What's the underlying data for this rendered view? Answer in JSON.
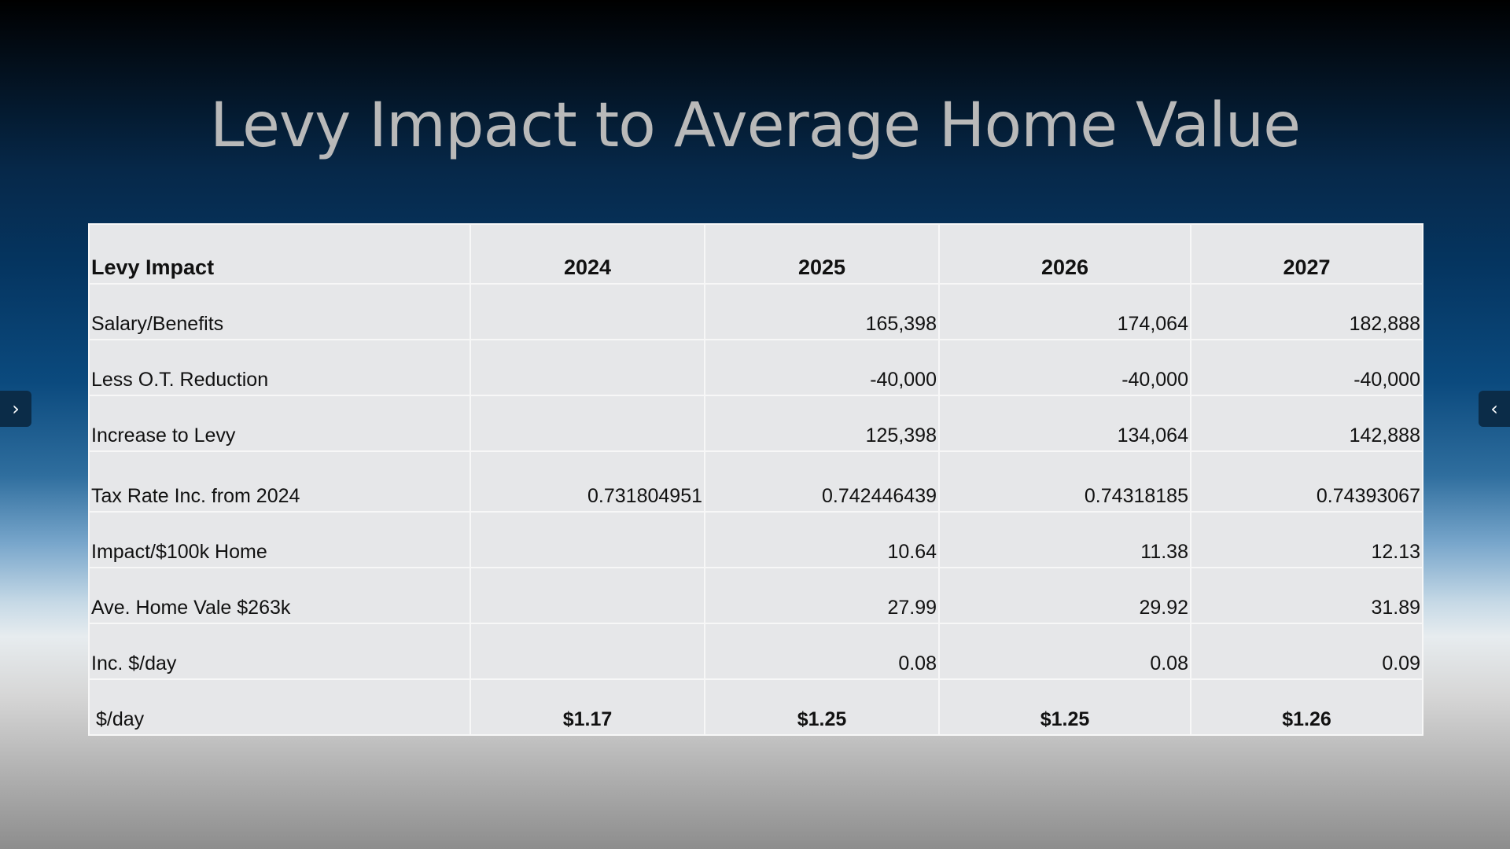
{
  "slide": {
    "title": "Levy Impact to Average Home Value"
  },
  "table": {
    "headers": [
      "Levy Impact",
      "2024",
      "2025",
      "2026",
      "2027"
    ],
    "rows": [
      {
        "label": "Salary/Benefits",
        "values": [
          "",
          "165,398",
          "174,064",
          "182,888"
        ]
      },
      {
        "label": "Less O.T. Reduction",
        "values": [
          "",
          "-40,000",
          "-40,000",
          "-40,000"
        ]
      },
      {
        "label": "Increase to Levy",
        "values": [
          "",
          "125,398",
          "134,064",
          "142,888"
        ]
      },
      {
        "label": "Tax Rate Inc. from 2024",
        "values": [
          "0.731804951",
          "0.742446439",
          "0.74318185",
          "0.74393067"
        ]
      },
      {
        "label": "Impact/$100k Home",
        "values": [
          "",
          "10.64",
          "11.38",
          "12.13"
        ]
      },
      {
        "label": "Ave. Home Vale $263k",
        "values": [
          "",
          "27.99",
          "29.92",
          "31.89"
        ]
      },
      {
        "label": "Inc. $/day",
        "values": [
          "",
          "0.08",
          "0.08",
          "0.09"
        ]
      }
    ],
    "total": {
      "label": "$/day",
      "values": [
        "$1.17",
        "$1.25",
        "$1.25",
        "$1.26"
      ]
    }
  },
  "nav": {
    "next_icon": "chevron-right-icon",
    "prev_icon": "chevron-left-icon",
    "next_glyph": "›",
    "prev_glyph": "‹"
  }
}
